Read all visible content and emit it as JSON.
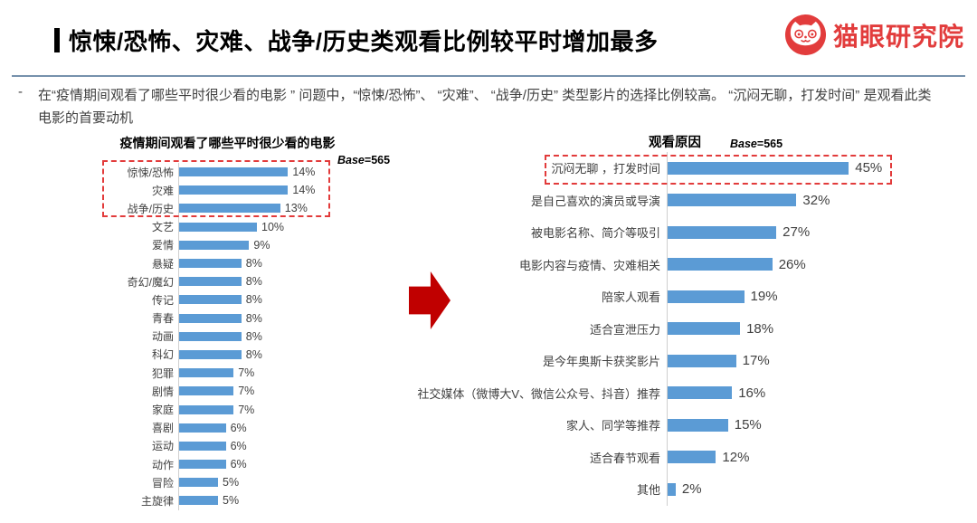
{
  "header": {
    "title": "惊悚/恐怖、灾难、战争/历史类观看比例较平时增加最多",
    "logo_text": "猫眼研究院",
    "logo_color": "#E23C3C"
  },
  "summary": {
    "bullet": "-",
    "text": "在“疫情期间观看了哪些平时很少看的电影 ” 问题中，“惊悚/恐怖”、 “灾难”、 “战争/历史” 类型影片的选择比例较高。 “沉闷无聊，打发时间” 是观看此类电影的首要动机"
  },
  "arrow": {
    "direction": "right",
    "color": "#C00000"
  },
  "chart_data": [
    {
      "type": "bar",
      "orientation": "horizontal",
      "title": "疫情期间观看了哪些平时很少看的电影",
      "base_prefix": "Base",
      "base_value": "=565",
      "value_suffix": "%",
      "bar_color": "#5B9BD5",
      "highlight_box_color": "#E23B3B",
      "highlighted_categories": [
        "惊悚/恐怖",
        "灾难",
        "战争/历史"
      ],
      "categories": [
        "惊悚/恐怖",
        "灾难",
        "战争/历史",
        "文艺",
        "爱情",
        "悬疑",
        "奇幻/魔幻",
        "传记",
        "青春",
        "动画",
        "科幻",
        "犯罪",
        "剧情",
        "家庭",
        "喜剧",
        "运动",
        "动作",
        "冒险",
        "主旋律"
      ],
      "values": [
        14,
        14,
        13,
        10,
        9,
        8,
        8,
        8,
        8,
        8,
        8,
        7,
        7,
        7,
        6,
        6,
        6,
        5,
        5
      ],
      "xlim": [
        0,
        15
      ],
      "grid": false,
      "legend": false
    },
    {
      "type": "bar",
      "orientation": "horizontal",
      "title": "观看原因",
      "base_prefix": "Base",
      "base_value": "=565",
      "value_suffix": "%",
      "bar_color": "#5B9BD5",
      "highlight_box_color": "#E23B3B",
      "highlighted_categories": [
        "沉闷无聊 ，打发时间"
      ],
      "categories": [
        "沉闷无聊 ，打发时间",
        "是自己喜欢的演员或导演",
        "被电影名称、简介等吸引",
        "电影内容与疫情、灾难相关",
        "陪家人观看",
        "适合宣泄压力",
        "是今年奥斯卡获奖影片",
        "社交媒体（微博大V、微信公众号、抖音）推荐",
        "家人、同学等推荐",
        "适合春节观看",
        "其他"
      ],
      "values": [
        45,
        32,
        27,
        26,
        19,
        18,
        17,
        16,
        15,
        12,
        2
      ],
      "xlim": [
        0,
        50
      ],
      "grid": false,
      "legend": false
    }
  ]
}
